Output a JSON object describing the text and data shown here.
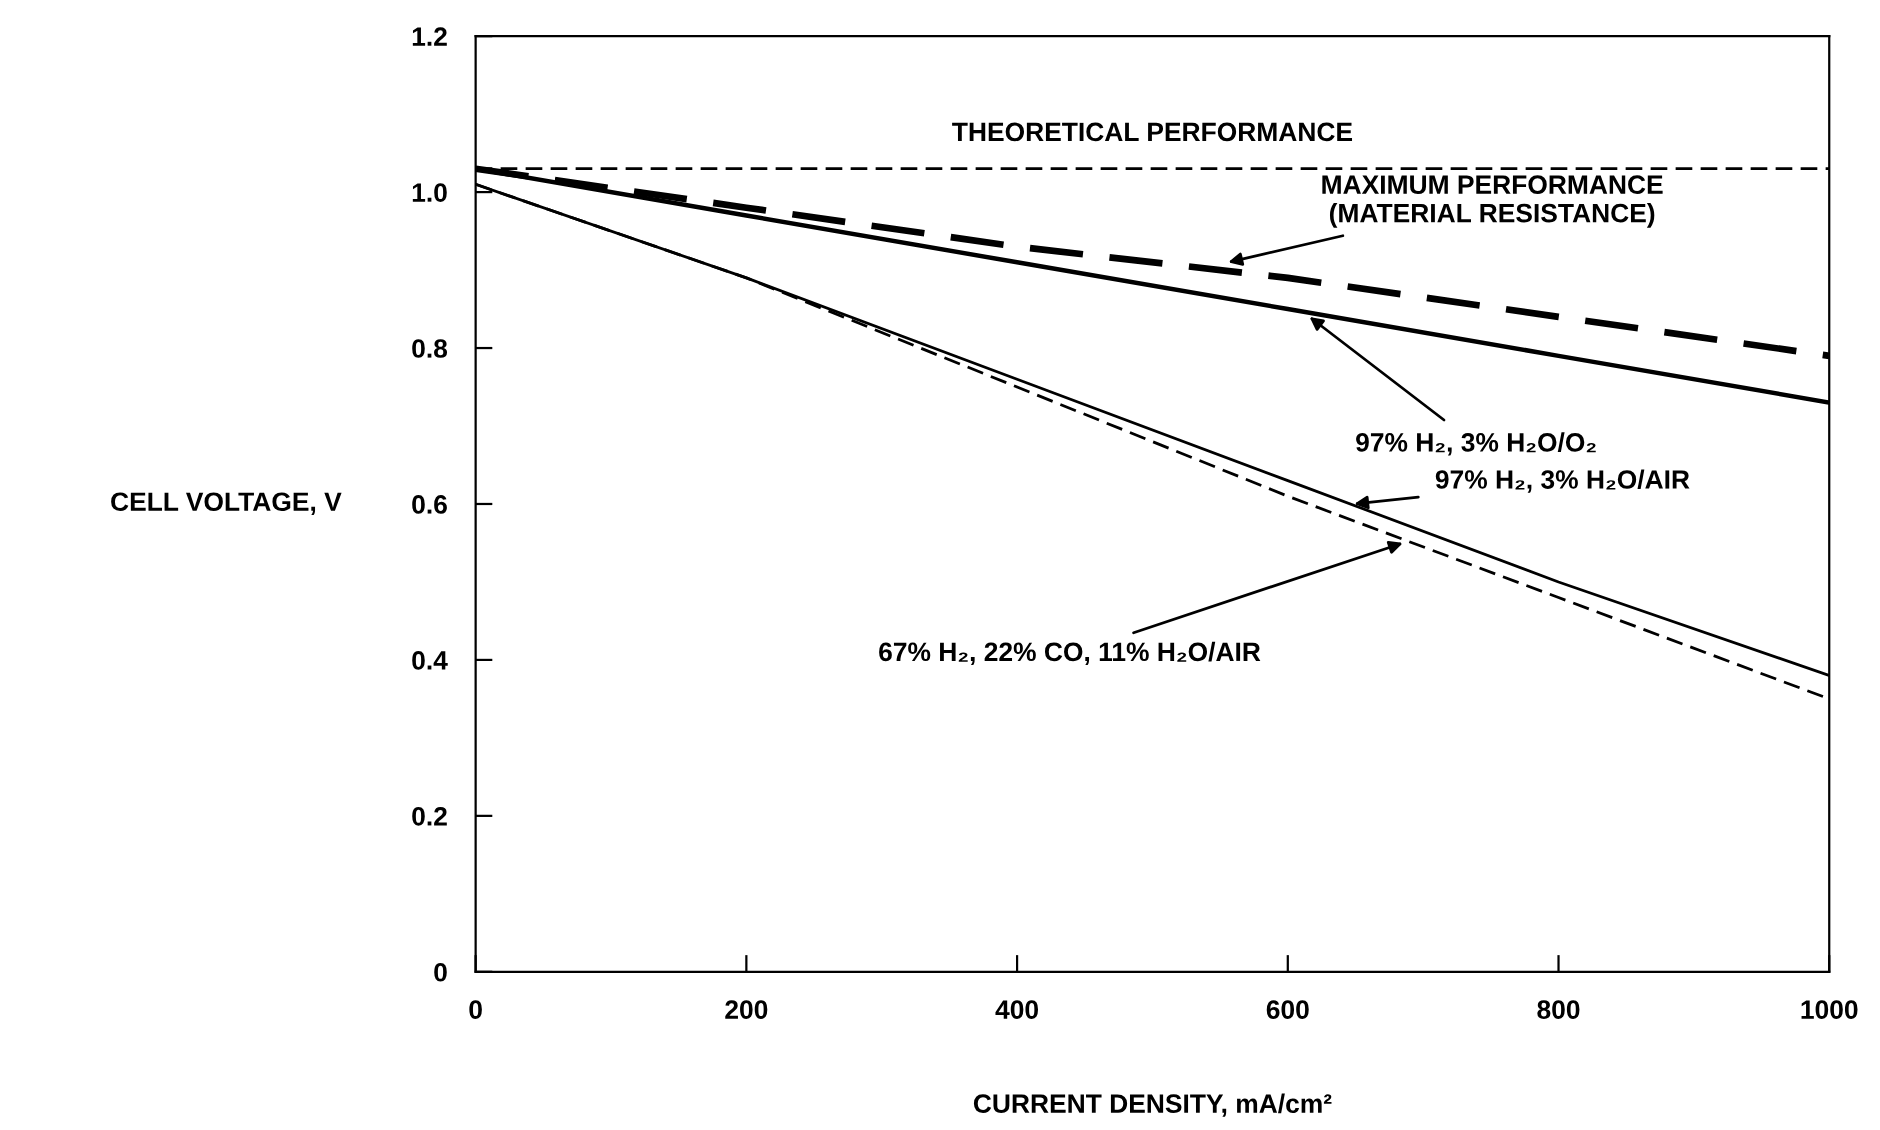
{
  "chart_data": {
    "type": "line",
    "xlabel": "CURRENT DENSITY, mA/cm²",
    "ylabel": "CELL VOLTAGE, V",
    "x": [
      0,
      200,
      400,
      600,
      800,
      1000
    ],
    "series": [
      {
        "color": "#000000",
        "values": [
          1.03,
          0.98,
          0.93,
          0.89,
          0.84,
          0.79
        ],
        "line_style": "dashed"
      },
      {
        "color": "#000000",
        "values": [
          1.03,
          0.97,
          0.91,
          0.85,
          0.79,
          0.73
        ],
        "line_style": "solid"
      },
      {
        "color": "#000000",
        "values": [
          1.01,
          0.89,
          0.76,
          0.63,
          0.5,
          0.38
        ],
        "line_style": "solid"
      },
      {
        "color": "#000000",
        "values": [
          1.01,
          0.89,
          0.75,
          0.61,
          0.48,
          0.35
        ],
        "line_style": "dashed"
      }
    ],
    "ref_lines": [
      {
        "axis": "y",
        "value": 1.03,
        "label": "THEORETICAL PERFORMANCE",
        "line_style": "dashed",
        "color": "#000000"
      }
    ],
    "annotations": [
      {
        "text": "MAXIMUM PERFORMANCE\n(MATERIAL RESISTANCE)",
        "x": 556,
        "y": 0.91
      },
      {
        "text": "97% H₂, 3% H₂O/O₂",
        "x": 616,
        "y": 0.84
      },
      {
        "text": "97% H₂, 3% H₂O/AIR",
        "x": 649,
        "y": 0.6
      },
      {
        "text": "67% H₂, 22% CO, 11% H₂O/AIR",
        "x": 685,
        "y": 0.55
      }
    ],
    "xlim": [
      0,
      1000
    ],
    "xticks": [
      0,
      200,
      400,
      600,
      800,
      1000
    ],
    "ylim": [
      0,
      1.2
    ],
    "yticks": [
      0,
      0.2,
      0.4,
      0.6,
      0.8,
      {
        "value": 1,
        "label": "1.0"
      },
      1.2
    ],
    "grid": false,
    "legend": false,
    "marker": "none"
  }
}
